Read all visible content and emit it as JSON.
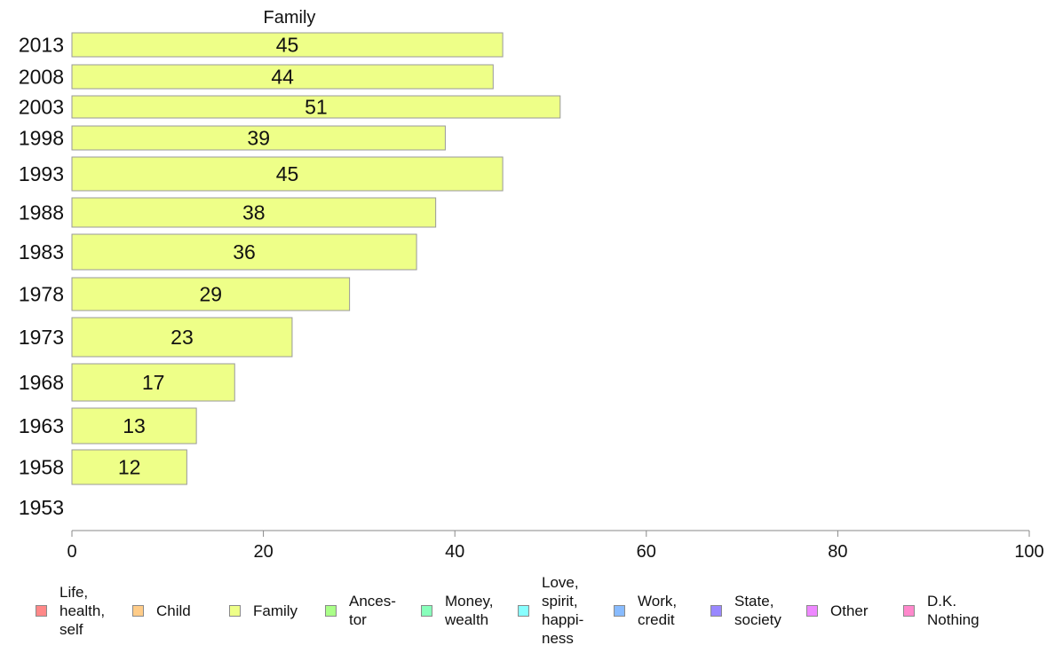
{
  "chart_data": {
    "type": "bar",
    "orientation": "horizontal",
    "title": "Family",
    "categories": [
      "2013",
      "2008",
      "2003",
      "1998",
      "1993",
      "1988",
      "1983",
      "1978",
      "1973",
      "1968",
      "1963",
      "1958",
      "1953"
    ],
    "series": [
      {
        "name": "Family",
        "values": [
          45,
          44,
          51,
          39,
          45,
          38,
          36,
          29,
          23,
          17,
          13,
          12,
          null
        ]
      }
    ],
    "data_labels": [
      "45",
      "44",
      "51",
      "39",
      "45",
      "38",
      "36",
      "29",
      "23",
      "17",
      "13",
      "12",
      ""
    ],
    "xlim": [
      0,
      100
    ],
    "xticks": [
      "0",
      "20",
      "40",
      "60",
      "80",
      "100"
    ],
    "xlabel": "",
    "ylabel": "",
    "grid": false,
    "bar_color": "#eeff88",
    "bar_stroke": "#999999",
    "legend": {
      "placement": "bottom",
      "items": [
        {
          "label": "Life,\nhealth,\nself",
          "color": "#ff8888"
        },
        {
          "label": "Child",
          "color": "#ffcc88"
        },
        {
          "label": "Family",
          "color": "#eeff88"
        },
        {
          "label": "Ances-\ntor",
          "color": "#aaff88"
        },
        {
          "label": "Money,\nwealth",
          "color": "#88ffbb"
        },
        {
          "label": "Love,\nspirit,\nhappi-\nness",
          "color": "#88ffff"
        },
        {
          "label": "Work,\ncredit",
          "color": "#88bbff"
        },
        {
          "label": "State,\nsociety",
          "color": "#9988ff"
        },
        {
          "label": "Other",
          "color": "#ee88ff"
        },
        {
          "label": "D.K.\nNothing",
          "color": "#ff88cc"
        }
      ]
    }
  }
}
